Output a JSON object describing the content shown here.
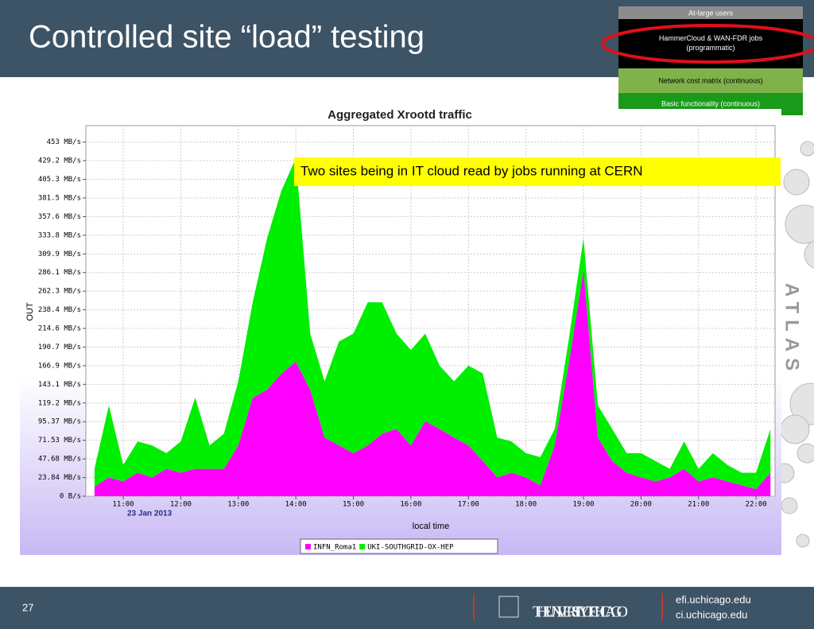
{
  "slide": {
    "title": "Controlled site “load” testing",
    "pyramid": [
      "At-large users",
      "HammerCloud & WAN-FDR jobs\n(programmatic)",
      "Network cost matrix (continuous)",
      "Basic functionality (continuous)"
    ],
    "side_logo": "ATLAS",
    "page_number": "27",
    "university": "THE UNIVERSITY OF CHICAGO",
    "links": [
      "efi.uchicago.edu",
      "ci.uchicago.edu"
    ]
  },
  "chart_data": {
    "type": "stacked_area",
    "title": "Aggregated Xrootd traffic",
    "annotation": "Two sites being in IT cloud read by jobs running at CERN",
    "x_label": "local time",
    "y_label": "OUT",
    "date_label": "23 Jan 2013",
    "grid": true,
    "x": [
      10.5,
      10.75,
      11,
      11.25,
      11.5,
      11.75,
      12,
      12.25,
      12.5,
      12.75,
      13,
      13.25,
      13.5,
      13.75,
      14,
      14.25,
      14.5,
      14.75,
      15,
      15.25,
      15.5,
      15.75,
      16,
      16.25,
      16.5,
      16.75,
      17,
      17.25,
      17.5,
      17.75,
      18,
      18.25,
      18.5,
      18.75,
      19,
      19.25,
      19.5,
      19.75,
      20,
      20.25,
      20.5,
      20.75,
      21,
      21.25,
      21.5,
      21.75,
      22,
      22.25
    ],
    "series": [
      {
        "name": "INFN_Roma1",
        "color": "#ff00ff",
        "values": [
          12,
          24,
          19,
          30,
          24,
          35,
          30,
          35,
          35,
          35,
          65,
          126,
          136,
          157,
          172,
          136,
          75,
          65,
          55,
          65,
          80,
          86,
          65,
          96,
          86,
          75,
          65,
          45,
          24,
          30,
          24,
          14,
          65,
          172,
          289,
          75,
          45,
          30,
          24,
          19,
          24,
          35,
          19,
          24,
          19,
          14,
          9,
          30
        ]
      },
      {
        "name": "UKI-SOUTHGRID-OX-HEP",
        "color": "#00ee00",
        "values": [
          23,
          92,
          21,
          40,
          41,
          20,
          40,
          91,
          30,
          45,
          82,
          122,
          194,
          234,
          260,
          72,
          72,
          133,
          153,
          183,
          168,
          122,
          122,
          112,
          81,
          72,
          102,
          112,
          51,
          40,
          31,
          36,
          21,
          31,
          41,
          41,
          41,
          25,
          31,
          26,
          11,
          35,
          16,
          31,
          21,
          16,
          21,
          56
        ]
      }
    ],
    "xlim": [
      10.35,
      22.33
    ],
    "xticks": [
      {
        "value": 11,
        "label": "11:00"
      },
      {
        "value": 12,
        "label": "12:00"
      },
      {
        "value": 13,
        "label": "13:00"
      },
      {
        "value": 14,
        "label": "14:00"
      },
      {
        "value": 15,
        "label": "15:00"
      },
      {
        "value": 16,
        "label": "16:00"
      },
      {
        "value": 17,
        "label": "17:00"
      },
      {
        "value": 18,
        "label": "18:00"
      },
      {
        "value": 19,
        "label": "19:00"
      },
      {
        "value": 20,
        "label": "20:00"
      },
      {
        "value": 21,
        "label": "21:00"
      },
      {
        "value": 22,
        "label": "22:00"
      }
    ],
    "ylim": [
      0,
      474
    ],
    "yticks": [
      {
        "value": 0,
        "label": "0 B/s"
      },
      {
        "value": 23.84,
        "label": "23.84 MB/s"
      },
      {
        "value": 47.68,
        "label": "47.68 MB/s"
      },
      {
        "value": 71.53,
        "label": "71.53 MB/s"
      },
      {
        "value": 95.37,
        "label": "95.37 MB/s"
      },
      {
        "value": 119.2,
        "label": "119.2 MB/s"
      },
      {
        "value": 143.1,
        "label": "143.1 MB/s"
      },
      {
        "value": 166.9,
        "label": "166.9 MB/s"
      },
      {
        "value": 190.7,
        "label": "190.7 MB/s"
      },
      {
        "value": 214.6,
        "label": "214.6 MB/s"
      },
      {
        "value": 238.4,
        "label": "238.4 MB/s"
      },
      {
        "value": 262.3,
        "label": "262.3 MB/s"
      },
      {
        "value": 286.1,
        "label": "286.1 MB/s"
      },
      {
        "value": 309.9,
        "label": "309.9 MB/s"
      },
      {
        "value": 333.8,
        "label": "333.8 MB/s"
      },
      {
        "value": 357.6,
        "label": "357.6 MB/s"
      },
      {
        "value": 381.5,
        "label": "381.5 MB/s"
      },
      {
        "value": 405.3,
        "label": "405.3 MB/s"
      },
      {
        "value": 429.2,
        "label": "429.2 MB/s"
      },
      {
        "value": 453,
        "label": "453 MB/s"
      }
    ]
  }
}
